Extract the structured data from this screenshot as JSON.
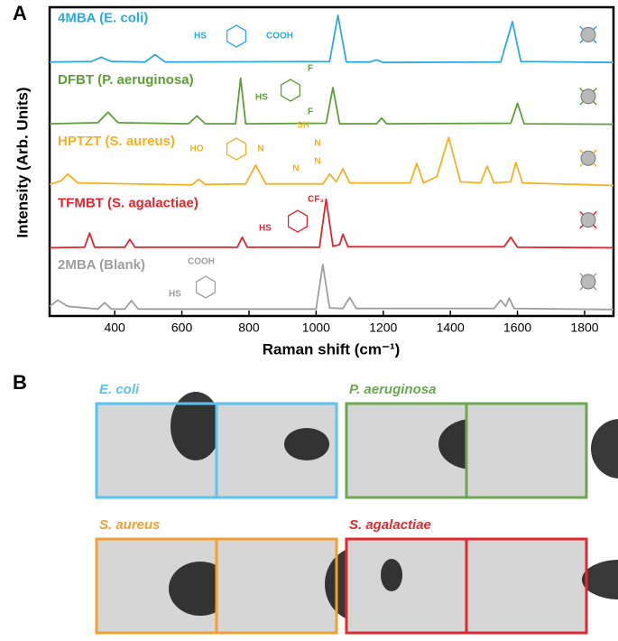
{
  "chart_data": {
    "type": "line",
    "xlabel": "Raman shift (cm⁻¹)",
    "ylabel": "Intensity (Arb. Units)",
    "xlim": [
      206,
      1886
    ],
    "xticks": [
      400,
      600,
      800,
      1000,
      1200,
      1400,
      1600,
      1800
    ],
    "series": [
      {
        "name": "4MBA (E. coli)",
        "color": "#29abe2",
        "structure_labels": [
          "HS",
          "COOH"
        ],
        "x": [
          206,
          330,
          360,
          390,
          490,
          520,
          550,
          1040,
          1065,
          1090,
          1160,
          1180,
          1200,
          1550,
          1585,
          1610,
          1886
        ],
        "values": [
          3,
          4,
          12,
          4,
          3,
          17,
          3,
          4,
          92,
          3,
          3,
          7,
          2,
          3,
          80,
          4,
          2
        ]
      },
      {
        "name": "DFBT (P. aeruginosa)",
        "color": "#5f9e36",
        "structure_labels": [
          "HS",
          "F",
          "F"
        ],
        "x": [
          206,
          350,
          380,
          410,
          620,
          645,
          670,
          760,
          775,
          790,
          1030,
          1050,
          1070,
          1180,
          1195,
          1210,
          1580,
          1600,
          1620,
          1886
        ],
        "values": [
          3,
          5,
          25,
          5,
          3,
          18,
          3,
          3,
          90,
          3,
          4,
          72,
          3,
          3,
          14,
          3,
          4,
          42,
          3,
          2
        ]
      },
      {
        "name": "HPTZT (S. aureus)",
        "color": "#f5b022",
        "structure_labels": [
          "HO",
          "N",
          "SH",
          "N",
          "N",
          "N"
        ],
        "x": [
          206,
          240,
          260,
          290,
          630,
          650,
          670,
          790,
          820,
          850,
          1020,
          1040,
          1060,
          1080,
          1100,
          1280,
          1300,
          1320,
          1360,
          1395,
          1430,
          1490,
          1510,
          1530,
          1580,
          1595,
          1615,
          1886
        ],
        "values": [
          5,
          12,
          25,
          8,
          4,
          15,
          5,
          6,
          42,
          6,
          6,
          25,
          10,
          35,
          8,
          8,
          45,
          8,
          20,
          95,
          10,
          8,
          40,
          8,
          10,
          47,
          8,
          3
        ]
      },
      {
        "name": "TFMBT (S. agalactiae)",
        "color": "#e3242b",
        "structure_labels": [
          "HS",
          "CF₃"
        ],
        "x": [
          206,
          310,
          325,
          340,
          430,
          445,
          460,
          765,
          780,
          795,
          1010,
          1030,
          1050,
          1070,
          1080,
          1095,
          1560,
          1580,
          1600,
          1886
        ],
        "values": [
          2,
          3,
          30,
          3,
          3,
          18,
          3,
          3,
          22,
          3,
          3,
          95,
          5,
          8,
          28,
          4,
          4,
          22,
          3,
          2
        ]
      },
      {
        "name": "2MBA (Blank)",
        "color": "#9e9e9e",
        "structure_labels": [
          "HS",
          "COOH"
        ],
        "x": [
          206,
          230,
          260,
          350,
          370,
          390,
          430,
          450,
          470,
          1000,
          1020,
          1040,
          1080,
          1100,
          1120,
          1530,
          1550,
          1565,
          1575,
          1590,
          1886
        ],
        "values": [
          8,
          20,
          8,
          3,
          15,
          3,
          3,
          19,
          3,
          3,
          88,
          5,
          4,
          25,
          4,
          4,
          20,
          8,
          24,
          4,
          2
        ]
      }
    ]
  },
  "panel_labels": [
    "A",
    "B"
  ],
  "panel_b": {
    "panels": [
      {
        "title": "E. coli",
        "color": "#5bc3ee"
      },
      {
        "title": "P. aeruginosa",
        "color": "#6aa84f"
      },
      {
        "title": "S. aureus",
        "color": "#f0a030"
      },
      {
        "title": "S. agalactiae",
        "color": "#e0282e"
      }
    ]
  }
}
